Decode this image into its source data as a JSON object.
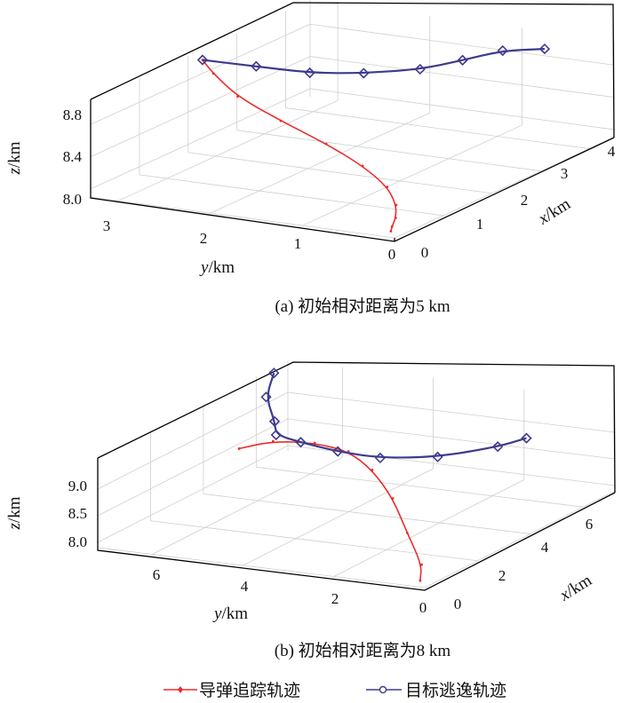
{
  "legend": {
    "missile_label": "导弹追踪轨迹",
    "target_label": "目标逃逸轨迹",
    "missile_color": "#ee2b2b",
    "target_color": "#3d3b8e"
  },
  "chart_data": [
    {
      "type": "line3d",
      "caption": "(a) 初始相对距离为5 km",
      "xlabel": "x/km",
      "ylabel": "y/km",
      "zlabel": "z/km",
      "xlim": [
        0,
        4.5
      ],
      "ylim": [
        0,
        3.3
      ],
      "zlim": [
        7.9,
        9.1
      ],
      "xticks": [
        "0",
        "1",
        "2",
        "3",
        "4"
      ],
      "yticks": [
        "3",
        "2",
        "1",
        "0"
      ],
      "zticks": [
        "8.0",
        "8.4",
        "8.8"
      ],
      "series": [
        {
          "name": "导弹追踪轨迹",
          "points": [
            [
              0.02,
              0.05,
              7.97
            ],
            [
              0.1,
              0.08,
              8.0
            ],
            [
              0.25,
              0.12,
              8.06
            ],
            [
              0.45,
              0.22,
              8.15
            ],
            [
              0.7,
              0.45,
              8.27
            ],
            [
              0.95,
              0.85,
              8.4
            ],
            [
              1.15,
              1.35,
              8.54
            ],
            [
              1.35,
              1.95,
              8.68
            ],
            [
              1.6,
              2.55,
              8.82
            ],
            [
              1.95,
              3.0,
              8.94
            ],
            [
              2.2,
              3.25,
              9.0
            ]
          ]
        },
        {
          "name": "目标逃逸轨迹",
          "points": [
            [
              2.2,
              3.25,
              9.0
            ],
            [
              2.45,
              2.8,
              8.92
            ],
            [
              2.7,
              2.35,
              8.84
            ],
            [
              3.05,
              1.95,
              8.8
            ],
            [
              3.45,
              1.55,
              8.8
            ],
            [
              3.85,
              1.3,
              8.84
            ],
            [
              4.2,
              1.05,
              8.9
            ],
            [
              4.4,
              0.7,
              8.92
            ]
          ]
        }
      ]
    },
    {
      "type": "line3d",
      "caption": "(b) 初始相对距离为8 km",
      "xlabel": "x/km",
      "ylabel": "y/km",
      "zlabel": "z/km",
      "xlim": [
        0,
        7.2
      ],
      "ylim": [
        0,
        7.2
      ],
      "zlim": [
        7.9,
        9.6
      ],
      "xticks": [
        "0",
        "2",
        "4",
        "6"
      ],
      "yticks": [
        "6",
        "4",
        "2",
        "0"
      ],
      "zticks": [
        "8.0",
        "8.5",
        "9.0"
      ],
      "series": [
        {
          "name": "导弹追踪轨迹",
          "points": [
            [
              0.0,
              0.1,
              8.02
            ],
            [
              0.4,
              0.3,
              8.2
            ],
            [
              1.4,
              1.2,
              8.45
            ],
            [
              2.4,
              2.1,
              8.75
            ],
            [
              3.0,
              2.9,
              9.05
            ],
            [
              3.3,
              3.6,
              9.25
            ],
            [
              3.4,
              4.4,
              9.3
            ],
            [
              3.2,
              5.2,
              9.3
            ],
            [
              2.6,
              5.6,
              9.27
            ]
          ]
        },
        {
          "name": "目标逃逸轨迹",
          "points": [
            [
              5.4,
              0.9,
              9.25
            ],
            [
              5.0,
              1.3,
              9.15
            ],
            [
              4.1,
              2.1,
              9.1
            ],
            [
              3.3,
              2.9,
              9.2
            ],
            [
              2.9,
              3.6,
              9.35
            ],
            [
              2.7,
              4.3,
              9.5
            ],
            [
              2.8,
              4.9,
              9.55
            ],
            [
              3.6,
              5.4,
              9.55
            ],
            [
              5.0,
              6.4,
              9.55
            ],
            [
              6.5,
              7.1,
              9.55
            ]
          ]
        }
      ]
    }
  ]
}
